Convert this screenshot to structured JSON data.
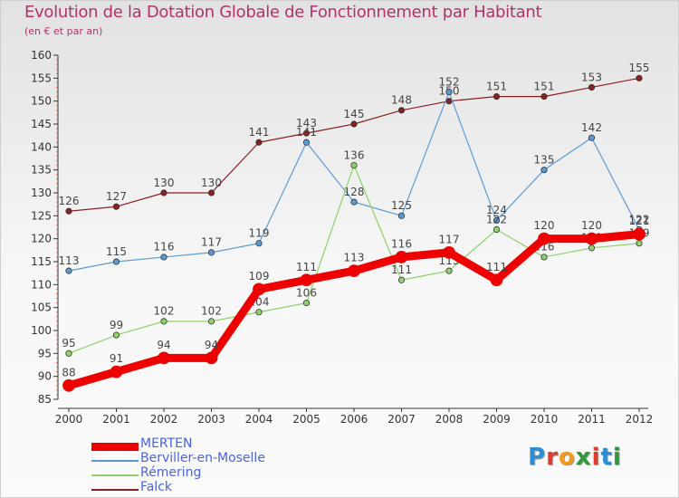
{
  "header": {
    "title": "Evolution de la Dotation Globale de Fonctionnement par Habitant",
    "subtitle": "(en € et par an)"
  },
  "brand": {
    "text": "Proxiti",
    "letter_colors": [
      "#2c8fd6",
      "#e23a2c",
      "#f39b1c",
      "#2f9a3a",
      "#e23a2c",
      "#2c8fd6",
      "#2f9a3a"
    ]
  },
  "chart_data": {
    "type": "line",
    "categories": [
      "2000",
      "2001",
      "2002",
      "2003",
      "2004",
      "2005",
      "2006",
      "2007",
      "2008",
      "2009",
      "2010",
      "2011",
      "2012"
    ],
    "ylim": [
      85,
      160
    ],
    "ytick_major": [
      85,
      90,
      95,
      100,
      105,
      110,
      115,
      120,
      125,
      130,
      135,
      140,
      145,
      150,
      155,
      160
    ],
    "grid": false,
    "legend_position": "bottom-left",
    "series": [
      {
        "name": "Falck",
        "color": "#8b2020",
        "values": [
          126,
          127,
          130,
          130,
          141,
          143,
          145,
          148,
          150,
          151,
          151,
          153,
          155
        ]
      },
      {
        "name": "Berviller-en-Moselle",
        "color": "#5b9bd5",
        "values": [
          113,
          115,
          116,
          117,
          119,
          141,
          128,
          125,
          152,
          124,
          135,
          142,
          122
        ]
      },
      {
        "name": "Rémering",
        "color": "#8fd16b",
        "values": [
          95,
          99,
          102,
          102,
          104,
          106,
          136,
          111,
          113,
          122,
          116,
          118,
          119
        ]
      },
      {
        "name": "MERTEN",
        "color": "#ee0000",
        "values": [
          88,
          91,
          94,
          94,
          109,
          111,
          113,
          116,
          117,
          111,
          120,
          120,
          121
        ]
      }
    ],
    "legend_order": [
      "MERTEN",
      "Berviller-en-Moselle",
      "Rémering",
      "Falck"
    ]
  }
}
